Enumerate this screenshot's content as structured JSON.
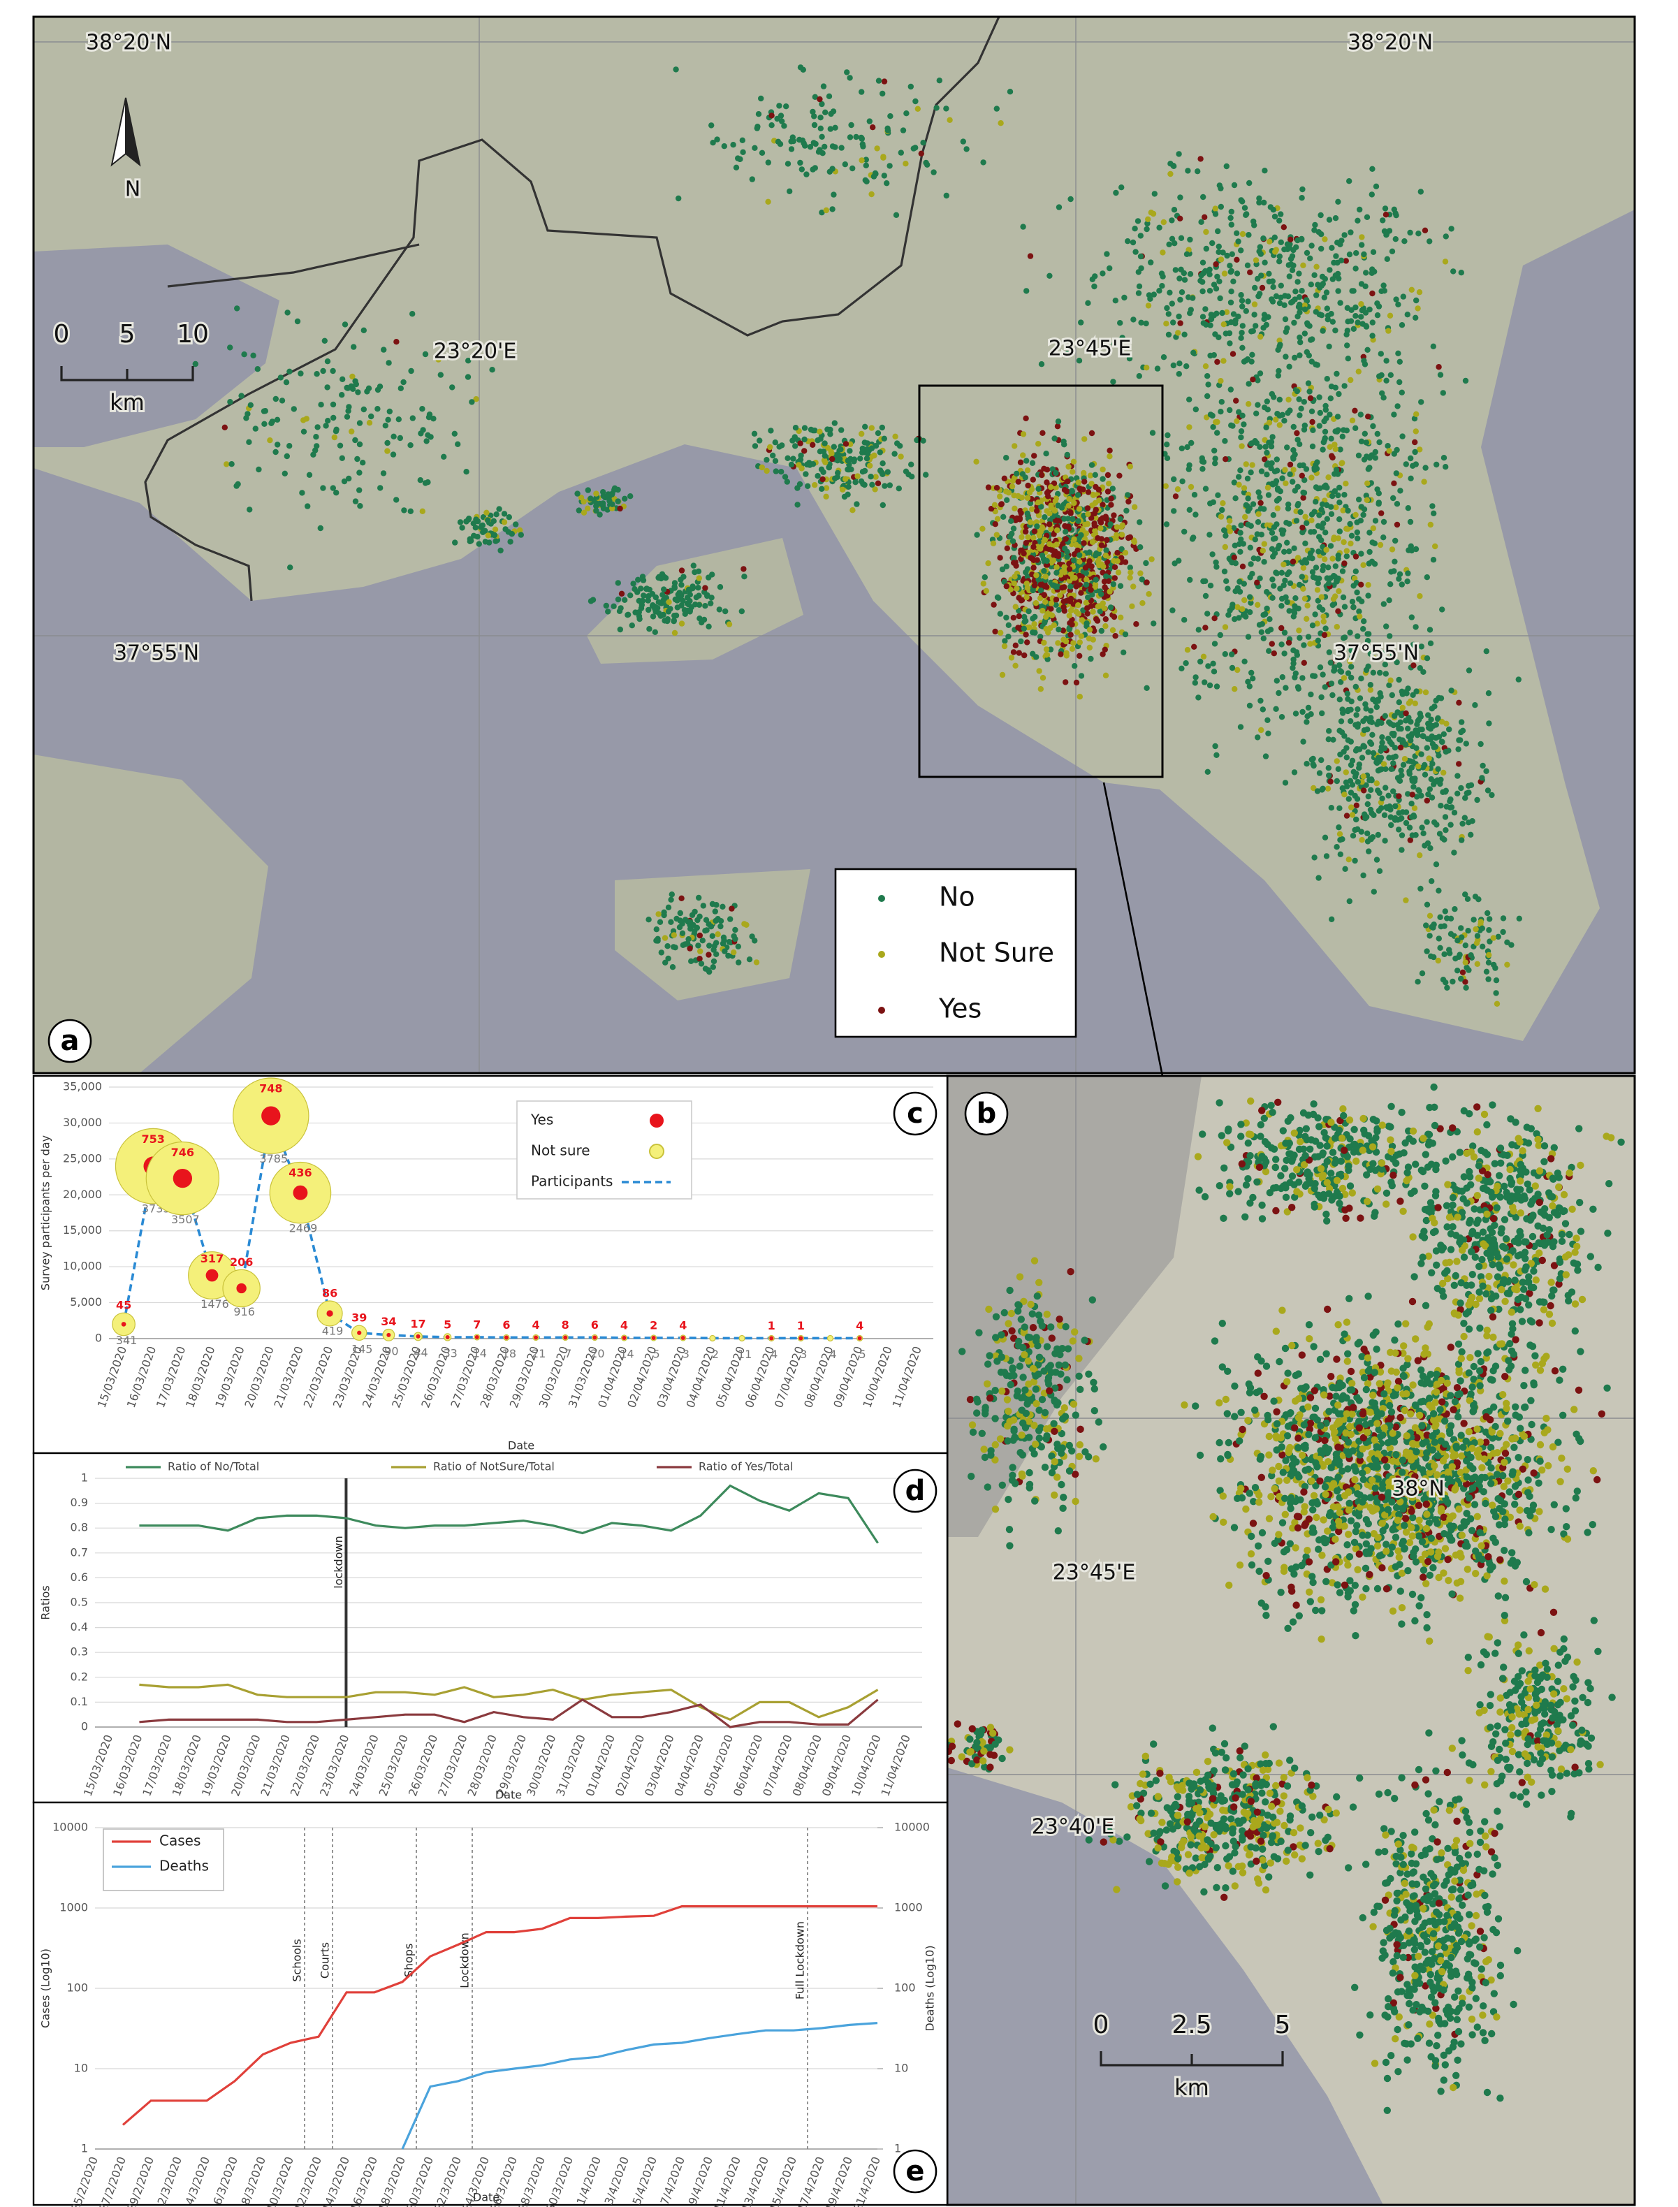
{
  "map_a": {
    "panel_label": "a",
    "lat_labels": [
      "38°20'N",
      "38°20'N",
      "37°55'N",
      "37°55'N"
    ],
    "lon_labels": [
      "23°20'E",
      "23°45'E"
    ],
    "scale": {
      "ticks": [
        "0",
        "5",
        "10"
      ],
      "unit": "km"
    },
    "north": "N",
    "legend": [
      {
        "name": "No",
        "color": "#1f7a4d"
      },
      {
        "name": "Not Sure",
        "color": "#a9a81c"
      },
      {
        "name": "Yes",
        "color": "#7c1212"
      }
    ]
  },
  "map_b": {
    "panel_label": "b",
    "lat_labels": [
      "38°N"
    ],
    "lon_labels": [
      "23°45'E",
      "23°40'E"
    ],
    "scale": {
      "ticks": [
        "0",
        "2.5",
        "5"
      ],
      "unit": "km"
    }
  },
  "chart_data": [
    {
      "type": "bubble",
      "panel_label": "c",
      "y_label": "Survey participants per day",
      "x_label": "Date",
      "categories": [
        "15/03/2020",
        "16/03/2020",
        "17/03/2020",
        "18/03/2020",
        "19/03/2020",
        "20/03/2020",
        "21/03/2020",
        "22/03/2020",
        "23/03/2020",
        "24/03/2020",
        "25/03/2020",
        "26/03/2020",
        "27/03/2020",
        "28/03/2020",
        "29/03/2020",
        "30/03/2020",
        "31/03/2020",
        "01/04/2020",
        "02/04/2020",
        "03/04/2020",
        "04/04/2020",
        "05/04/2020",
        "06/04/2020",
        "07/04/2020",
        "08/04/2020",
        "09/04/2020",
        "10/04/2020",
        "11/04/2020"
      ],
      "series": [
        {
          "name": "Yes",
          "color": "#e8141c",
          "values": [
            45,
            753,
            746,
            317,
            206,
            748,
            436,
            86,
            39,
            34,
            17,
            5,
            7,
            6,
            4,
            8,
            6,
            4,
            2,
            4,
            null,
            null,
            1,
            1,
            null,
            4,
            null,
            null
          ]
        },
        {
          "name": "Not sure",
          "color": "#f4f07a",
          "values": [
            341,
            3733,
            3507,
            1476,
            916,
            3785,
            2469,
            419,
            145,
            90,
            44,
            33,
            14,
            18,
            21,
            7,
            20,
            14,
            5,
            3,
            2,
            11,
            4,
            3,
            4,
            5,
            null,
            null
          ]
        },
        {
          "name": "Participants",
          "color": "#2a8ad4",
          "values": [
            2000,
            24000,
            22300,
            8800,
            7000,
            31000,
            20300,
            3500,
            800,
            500,
            300,
            200,
            200,
            150,
            150,
            150,
            150,
            100,
            100,
            100,
            50,
            50,
            50,
            50,
            50,
            50,
            null,
            null
          ]
        }
      ],
      "ylim": [
        0,
        35000
      ],
      "yticks": [
        0,
        {
          "value": 5000,
          "label": "5,000"
        },
        {
          "value": 10000,
          "label": "10,000"
        },
        {
          "value": 15000,
          "label": "15,000"
        },
        {
          "value": 20000,
          "label": "20,000"
        },
        {
          "value": 25000,
          "label": "25,000"
        },
        {
          "value": 30000,
          "label": "30,000"
        },
        {
          "value": 35000,
          "label": "35,000"
        }
      ],
      "grid": true
    },
    {
      "type": "line",
      "panel_label": "d",
      "y_label": "Ratios",
      "x_label": "Date",
      "categories": [
        "15/03/2020",
        "16/03/2020",
        "17/03/2020",
        "18/03/2020",
        "19/03/2020",
        "20/03/2020",
        "21/03/2020",
        "22/03/2020",
        "23/03/2020",
        "24/03/2020",
        "25/03/2020",
        "26/03/2020",
        "27/03/2020",
        "28/03/2020",
        "29/03/2020",
        "30/03/2020",
        "31/03/2020",
        "01/04/2020",
        "02/04/2020",
        "03/04/2020",
        "04/04/2020",
        "05/04/2020",
        "06/04/2020",
        "07/04/2020",
        "08/04/2020",
        "09/04/2020",
        "10/04/2020",
        "11/04/2020"
      ],
      "series": [
        {
          "name": "Ratio of No/Total",
          "color": "#3d8a5c",
          "values": [
            null,
            0.81,
            0.81,
            0.81,
            0.79,
            0.84,
            0.85,
            0.85,
            0.84,
            0.81,
            0.8,
            0.81,
            0.81,
            0.82,
            0.83,
            0.81,
            0.78,
            0.82,
            0.81,
            0.79,
            0.85,
            0.97,
            0.91,
            0.87,
            0.94,
            0.92,
            0.74,
            null
          ]
        },
        {
          "name": "Ratio of NotSure/Total",
          "color": "#a8a032",
          "values": [
            null,
            0.17,
            0.16,
            0.16,
            0.17,
            0.13,
            0.12,
            0.12,
            0.12,
            0.14,
            0.14,
            0.13,
            0.16,
            0.12,
            0.13,
            0.15,
            0.11,
            0.13,
            0.14,
            0.15,
            0.08,
            0.03,
            0.1,
            0.1,
            0.04,
            0.08,
            0.15,
            null
          ]
        },
        {
          "name": "Ratio of Yes/Total",
          "color": "#8a3a3e",
          "values": [
            null,
            0.02,
            0.03,
            0.03,
            0.03,
            0.03,
            0.02,
            0.02,
            0.03,
            0.04,
            0.05,
            0.05,
            0.02,
            0.06,
            0.04,
            0.03,
            0.11,
            0.04,
            0.04,
            0.06,
            0.09,
            0,
            0.02,
            0.02,
            0.01,
            0.01,
            0.11,
            null
          ]
        }
      ],
      "annotations": [
        {
          "text": "lockdown",
          "at": "23/03/2020"
        }
      ],
      "ylim": [
        0,
        1
      ],
      "yticks": [
        0,
        0.1,
        0.2,
        0.3,
        0.4,
        0.5,
        0.6,
        0.7,
        0.8,
        0.9,
        1
      ],
      "grid": true
    },
    {
      "type": "line",
      "panel_label": "e",
      "y_label": "Cases (Log10)",
      "y2_label": "Deaths (Log10)",
      "x_label": "Date",
      "log_scale": true,
      "categories": [
        "25/2/2020",
        "27/2/2020",
        "29/2/2020",
        "2/3/2020",
        "4/3/2020",
        "6/3/2020",
        "8/3/2020",
        "10/3/2020",
        "12/3/2020",
        "14/3/2020",
        "16/3/2020",
        "18/3/2020",
        "20/3/2020",
        "22/3/2020",
        "24/3/2020",
        "26/3/2020",
        "28/3/2020",
        "30/3/2020",
        "1/4/2020",
        "3/4/2020",
        "5/4/2020",
        "7/4/2020",
        "9/4/2020",
        "11/4/2020",
        "13/4/2020",
        "15/4/2020",
        "17/4/2020",
        "19/4/2020",
        "21/4/2020"
      ],
      "series": [
        {
          "name": "Cases",
          "color": "#e0403a",
          "values": [
            null,
            2,
            4,
            4,
            4,
            7,
            15,
            21,
            25,
            89,
            89,
            120,
            250,
            350,
            500,
            500,
            550,
            750,
            750,
            780,
            800,
            1050,
            1050,
            1050,
            1050,
            1050,
            1050,
            1050,
            1050
          ]
        },
        {
          "name": "Deaths",
          "color": "#4aa3dc",
          "axis": "y2",
          "values": [
            null,
            null,
            null,
            null,
            null,
            null,
            null,
            null,
            null,
            null,
            null,
            1,
            6,
            7,
            9,
            10,
            11,
            13,
            14,
            17,
            20,
            21,
            24,
            27,
            30,
            30,
            32,
            35,
            37
          ]
        }
      ],
      "annotations": [
        {
          "text": "Schools",
          "at": "10/3/2020"
        },
        {
          "text": "Courts",
          "at": "12/3/2020"
        },
        {
          "text": "Shops",
          "at": "18/3/2020"
        },
        {
          "text": "Lockdown",
          "at": "22/3/2020"
        },
        {
          "text": "Full Lockdown",
          "at": "15/4/2020"
        }
      ],
      "ylim": [
        1,
        10000
      ],
      "yticks": [
        1,
        10,
        100,
        1000,
        10000
      ],
      "y2lim": [
        1,
        10000
      ],
      "y2ticks": [
        1,
        10,
        100,
        1000,
        10000
      ],
      "grid": true
    }
  ]
}
